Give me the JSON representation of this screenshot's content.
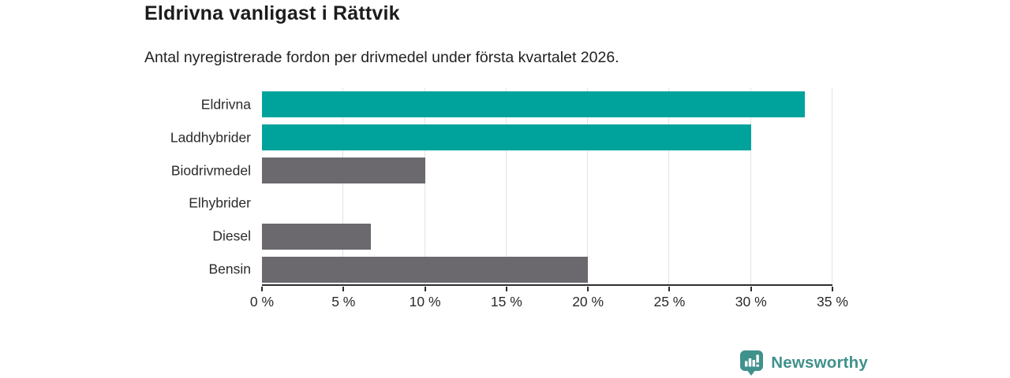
{
  "chart_data": {
    "type": "bar",
    "orientation": "horizontal",
    "title": "Eldrivna vanligast i Rättvik",
    "subtitle": "Antal nyregistrerade fordon per drivmedel under första kvartalet 2026.",
    "categories": [
      "Eldrivna",
      "Laddhybrider",
      "Biodrivmedel",
      "Elhybrider",
      "Diesel",
      "Bensin"
    ],
    "values": [
      33.3,
      30,
      10,
      0,
      6.7,
      20
    ],
    "unit": "%",
    "xlim": [
      0,
      35
    ],
    "xticks": [
      0,
      5,
      10,
      15,
      20,
      25,
      30,
      35
    ],
    "xtick_labels": [
      "0 %",
      "5 %",
      "10 %",
      "15 %",
      "20 %",
      "25 %",
      "30 %",
      "35 %"
    ],
    "grid": true,
    "legend": false,
    "xlabel": "",
    "ylabel": "",
    "colors": {
      "highlight": "#00a39b",
      "default": "#6b686e",
      "gridline": "#e3e3e3",
      "axis": "#2e2e2e"
    },
    "bar_colors": [
      "#00a39b",
      "#00a39b",
      "#6b686e",
      "#6b686e",
      "#6b686e",
      "#6b686e"
    ]
  },
  "footer": {
    "brand": "Newsworthy",
    "brand_color": "#3f918c",
    "logo_icon": "bar-chart-speech-bubble"
  }
}
